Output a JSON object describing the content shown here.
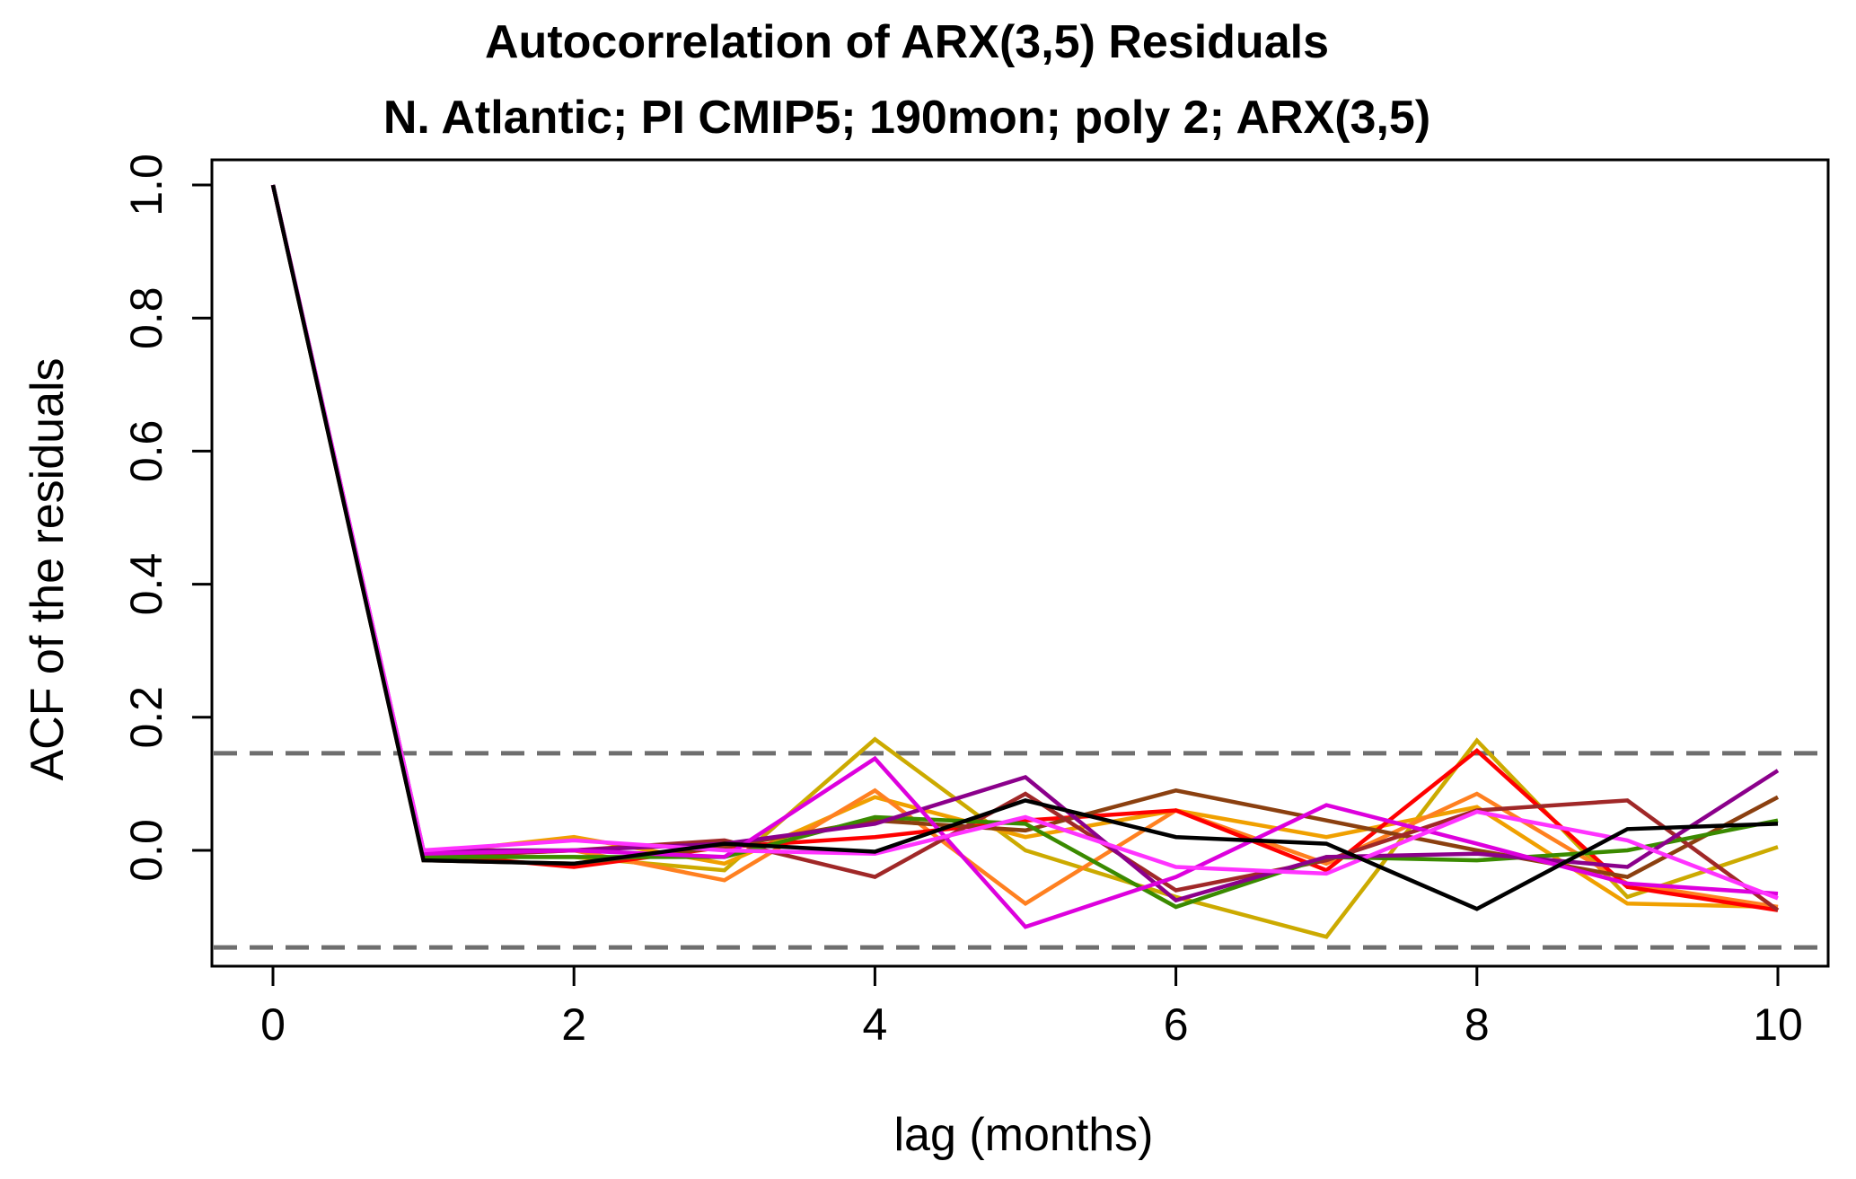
{
  "chart_data": {
    "type": "line",
    "title": "Autocorrelation of ARX(3,5) Residuals",
    "subtitle": "N. Atlantic; PI CMIP5; 190mon; poly 2; ARX(3,5)",
    "xlabel": "lag (months)",
    "ylabel": "ACF of the residuals",
    "xlim": [
      0,
      10
    ],
    "ylim": [
      -0.14,
      1.0
    ],
    "x_ticks": [
      0,
      2,
      4,
      6,
      8,
      10
    ],
    "x_tick_labels": [
      "0",
      "2",
      "4",
      "6",
      "8",
      "10"
    ],
    "y_ticks": [
      0.0,
      0.2,
      0.4,
      0.6,
      0.8,
      1.0
    ],
    "y_tick_labels": [
      "0.0",
      "0.2",
      "0.4",
      "0.6",
      "0.8",
      "1.0"
    ],
    "x": [
      0,
      1,
      2,
      3,
      4,
      5,
      6,
      7,
      8,
      9,
      10
    ],
    "confidence_bounds": [
      0.146,
      -0.146
    ],
    "confidence_color": "#6e6e6e",
    "legend": "none",
    "grid": false,
    "series": [
      {
        "name": "goldenrod",
        "color": "#ccaa00",
        "values": [
          1.0,
          -0.01,
          -0.01,
          -0.03,
          0.167,
          0.0,
          -0.07,
          -0.13,
          0.165,
          -0.07,
          0.005
        ]
      },
      {
        "name": "orange",
        "color": "#f0a000",
        "values": [
          1.0,
          -0.005,
          0.02,
          -0.02,
          0.08,
          0.02,
          0.06,
          0.02,
          0.065,
          -0.08,
          -0.085
        ]
      },
      {
        "name": "dark-orange",
        "color": "#ff8020",
        "values": [
          1.0,
          -0.01,
          0.0,
          -0.045,
          0.09,
          -0.08,
          0.06,
          -0.02,
          0.085,
          -0.05,
          -0.085
        ]
      },
      {
        "name": "red",
        "color": "#ff0000",
        "values": [
          1.0,
          -0.005,
          -0.025,
          0.005,
          0.02,
          0.045,
          0.06,
          -0.03,
          0.15,
          -0.055,
          -0.09
        ]
      },
      {
        "name": "brown",
        "color": "#8b4010",
        "values": [
          1.0,
          -0.015,
          -0.02,
          0.005,
          0.045,
          0.03,
          0.09,
          0.045,
          0.0,
          -0.04,
          0.08
        ]
      },
      {
        "name": "dark-red",
        "color": "#a02828",
        "values": [
          1.0,
          -0.01,
          0.0,
          0.015,
          -0.04,
          0.085,
          -0.06,
          -0.015,
          0.06,
          0.075,
          -0.09
        ]
      },
      {
        "name": "green",
        "color": "#3a8a00",
        "values": [
          1.0,
          -0.01,
          -0.01,
          -0.01,
          0.05,
          0.04,
          -0.085,
          -0.01,
          -0.015,
          0.0,
          0.045
        ]
      },
      {
        "name": "purple",
        "color": "#8b008b",
        "values": [
          1.0,
          0.0,
          0.0,
          0.01,
          0.04,
          0.11,
          -0.075,
          -0.01,
          -0.005,
          -0.025,
          0.12
        ]
      },
      {
        "name": "magenta",
        "color": "#dd00dd",
        "values": [
          1.0,
          -0.005,
          0.0,
          -0.01,
          0.138,
          -0.115,
          -0.04,
          0.068,
          0.01,
          -0.05,
          -0.065
        ]
      },
      {
        "name": "violet",
        "color": "#ff33ff",
        "values": [
          1.0,
          0.0,
          0.015,
          0.0,
          -0.005,
          0.05,
          -0.025,
          -0.035,
          0.058,
          0.015,
          -0.072
        ]
      },
      {
        "name": "black",
        "color": "#000000",
        "values": [
          1.0,
          -0.015,
          -0.02,
          0.01,
          -0.002,
          0.075,
          0.02,
          0.01,
          -0.088,
          0.032,
          0.04
        ]
      }
    ]
  }
}
